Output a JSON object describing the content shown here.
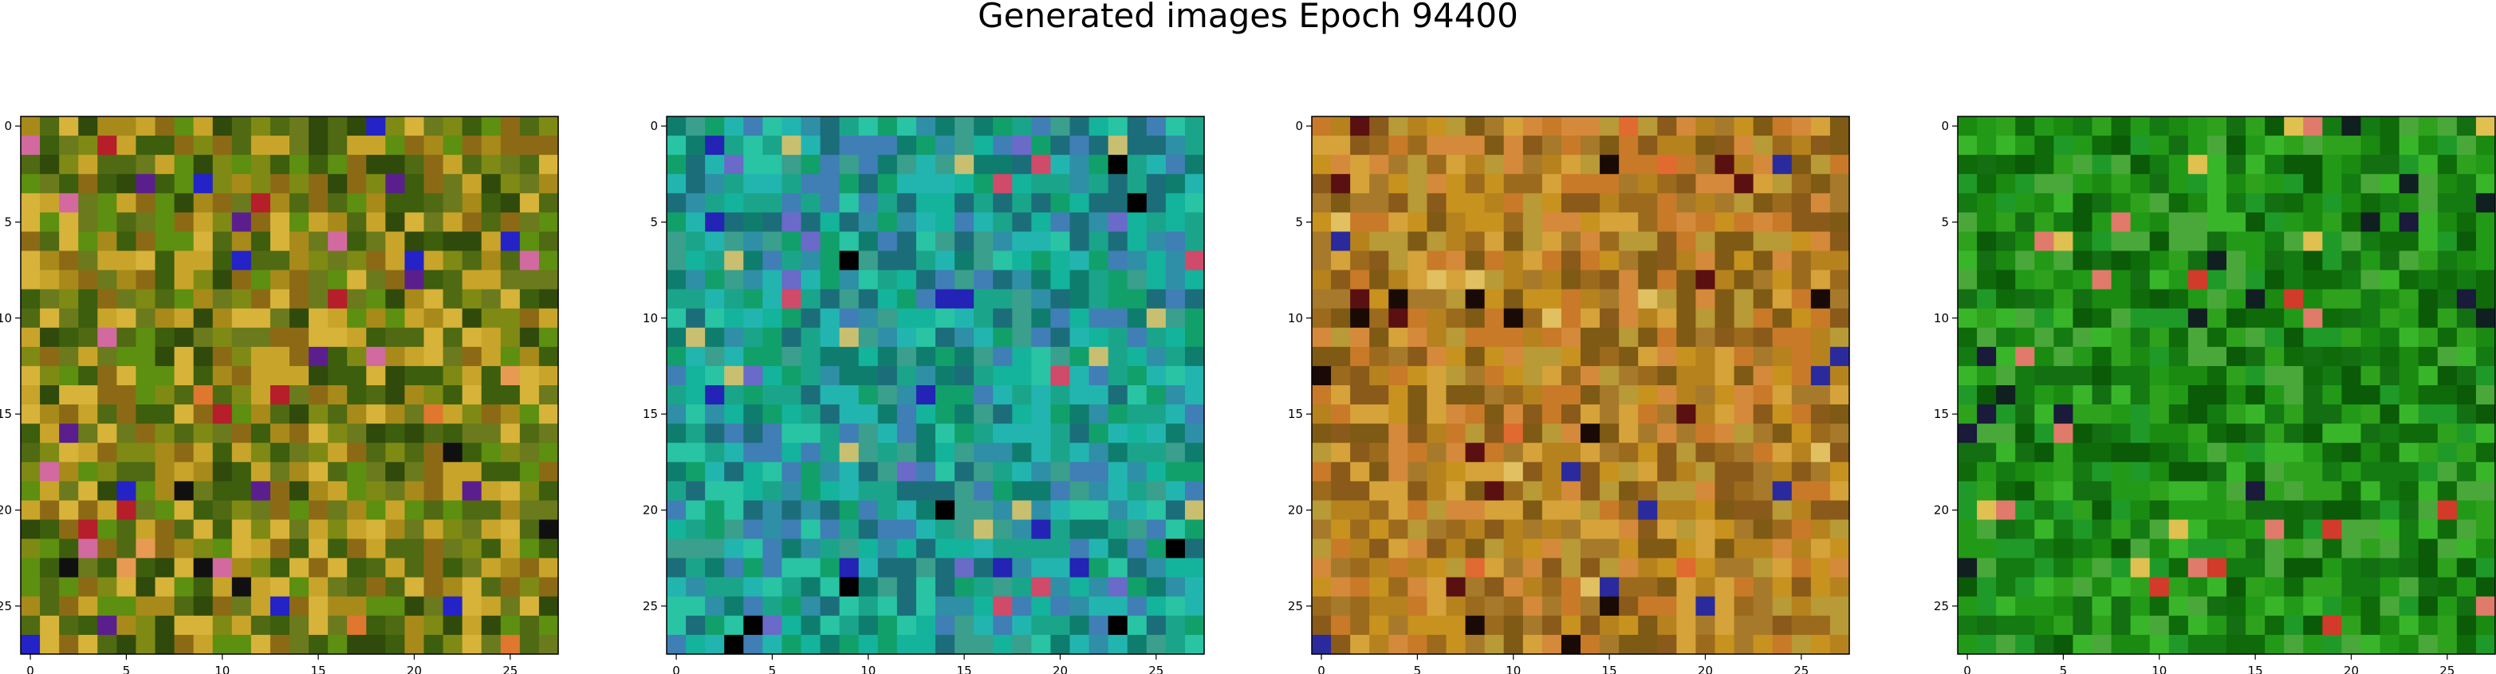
{
  "figure": {
    "title": "Generated images Epoch 94400"
  },
  "chart_data": [
    {
      "type": "heatmap",
      "title": "",
      "grid_size": [
        28,
        28
      ],
      "xlim": [
        -0.5,
        27.5
      ],
      "ylim": [
        27.5,
        -0.5
      ],
      "xticks": [
        0,
        5,
        10,
        15,
        20,
        25
      ],
      "yticks": [
        0,
        5,
        10,
        15,
        20,
        25
      ],
      "grid": false,
      "palette": [
        "#4f6a12",
        "#7e8a14",
        "#a78a1a",
        "#c8a52a",
        "#5d8f10",
        "#3c5e0d",
        "#8c6a15",
        "#2f4a0a",
        "#d7b33a",
        "#6b7a1c"
      ],
      "accents": [
        "#5a1f8c",
        "#2323c8",
        "#e0772f",
        "#b61e2a",
        "#d26aa0",
        "#101010",
        "#e79a52"
      ],
      "seed": 11
    },
    {
      "type": "heatmap",
      "title": "",
      "grid_size": [
        28,
        28
      ],
      "xlim": [
        -0.5,
        27.5
      ],
      "ylim": [
        27.5,
        -0.5
      ],
      "xticks": [
        0,
        5,
        10,
        15,
        20,
        25
      ],
      "yticks": [
        0,
        5,
        10,
        15,
        20,
        25
      ],
      "grid": false,
      "palette": [
        "#1aa58a",
        "#14b39c",
        "#2f8fa6",
        "#0f7d6e",
        "#28c4a4",
        "#3a9f8c",
        "#1c6d7a",
        "#22b5b0",
        "#11a06a",
        "#3f7fb5"
      ],
      "accents": [
        "#000000",
        "#d04a6a",
        "#c8c070",
        "#2323b5",
        "#6a6ac8"
      ],
      "seed": 23
    },
    {
      "type": "heatmap",
      "title": "",
      "grid_size": [
        28,
        28
      ],
      "xlim": [
        -0.5,
        27.5
      ],
      "ylim": [
        27.5,
        -0.5
      ],
      "xticks": [
        0,
        5,
        10,
        15,
        20,
        25
      ],
      "yticks": [
        0,
        5,
        10,
        15,
        20,
        25
      ],
      "grid": false,
      "palette": [
        "#b5821e",
        "#c8921f",
        "#9c6a1c",
        "#d6a23a",
        "#a67a2a",
        "#8a5a1a",
        "#c87a28",
        "#b89a36",
        "#7e5a14",
        "#d48a3a"
      ],
      "accents": [
        "#1a0a05",
        "#5a0f10",
        "#2a2a9c",
        "#e0c060",
        "#e06a30"
      ],
      "seed": 37
    },
    {
      "type": "heatmap",
      "title": "",
      "grid_size": [
        28,
        28
      ],
      "xlim": [
        -0.5,
        27.5
      ],
      "ylim": [
        27.5,
        -0.5
      ],
      "xticks": [
        0,
        5,
        10,
        15,
        20,
        25
      ],
      "yticks": [
        0,
        5,
        10,
        15,
        20,
        25
      ],
      "grid": false,
      "palette": [
        "#1a8a10",
        "#0f6a0a",
        "#2ea21c",
        "#147a12",
        "#39b52a",
        "#0a5a08",
        "#229a18",
        "#4aa83a",
        "#136f12",
        "#1f9a28"
      ],
      "accents": [
        "#d23a2a",
        "#102020",
        "#e0c050",
        "#e07a6a",
        "#1a1a3a"
      ],
      "seed": 53
    }
  ]
}
